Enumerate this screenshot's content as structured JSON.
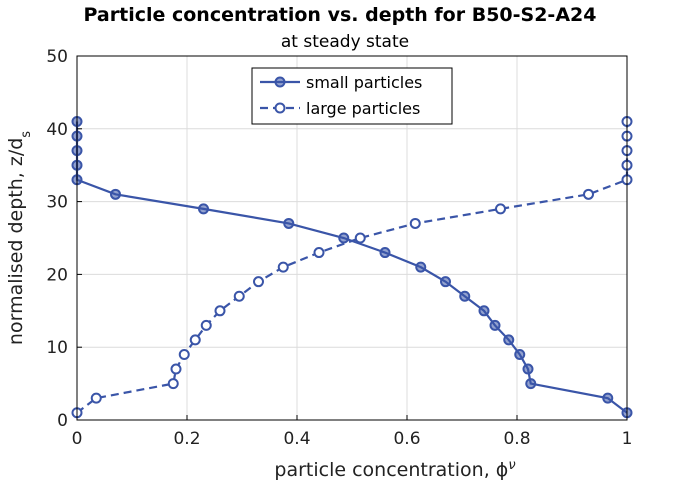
{
  "chart_data": {
    "type": "line",
    "title": "Particle concentration vs. depth for B50-S2-A24",
    "subtitle": "at steady state",
    "xlabel": "particle concentration, ϕ",
    "xlabel_superscript": "ν",
    "ylabel": "normalised depth, z/d",
    "ylabel_subscript": "s",
    "xlim": [
      0,
      1
    ],
    "ylim": [
      0,
      50
    ],
    "xticks": [
      0,
      0.2,
      0.4,
      0.6,
      0.8,
      1
    ],
    "xtick_labels": [
      "0",
      "0.2",
      "0.4",
      "0.6",
      "0.8",
      "1"
    ],
    "yticks": [
      0,
      10,
      20,
      30,
      40,
      50
    ],
    "ytick_labels": [
      "0",
      "10",
      "20",
      "30",
      "40",
      "50"
    ],
    "grid": true,
    "legend_position": "top-center",
    "color": "#3a55a8",
    "series": [
      {
        "name": "small particles",
        "linestyle": "solid",
        "marker": "filled-circle",
        "x": [
          1.0,
          0.965,
          0.825,
          0.82,
          0.805,
          0.785,
          0.76,
          0.74,
          0.705,
          0.67,
          0.625,
          0.56,
          0.485,
          0.385,
          0.23,
          0.07,
          0.0,
          0.0,
          0.0,
          0.0,
          0.0
        ],
        "y": [
          1,
          3,
          5,
          7,
          9,
          11,
          13,
          15,
          17,
          19,
          21,
          23,
          25,
          27,
          29,
          31,
          33,
          35,
          37,
          39,
          41
        ]
      },
      {
        "name": "large particles",
        "linestyle": "dashed",
        "marker": "open-circle",
        "x": [
          0.0,
          0.035,
          0.175,
          0.18,
          0.195,
          0.215,
          0.235,
          0.26,
          0.295,
          0.33,
          0.375,
          0.44,
          0.515,
          0.615,
          0.77,
          0.93,
          1.0,
          1.0,
          1.0,
          1.0,
          1.0
        ],
        "y": [
          1,
          3,
          5,
          7,
          9,
          11,
          13,
          15,
          17,
          19,
          21,
          23,
          25,
          27,
          29,
          31,
          33,
          35,
          37,
          39,
          41
        ]
      }
    ]
  }
}
